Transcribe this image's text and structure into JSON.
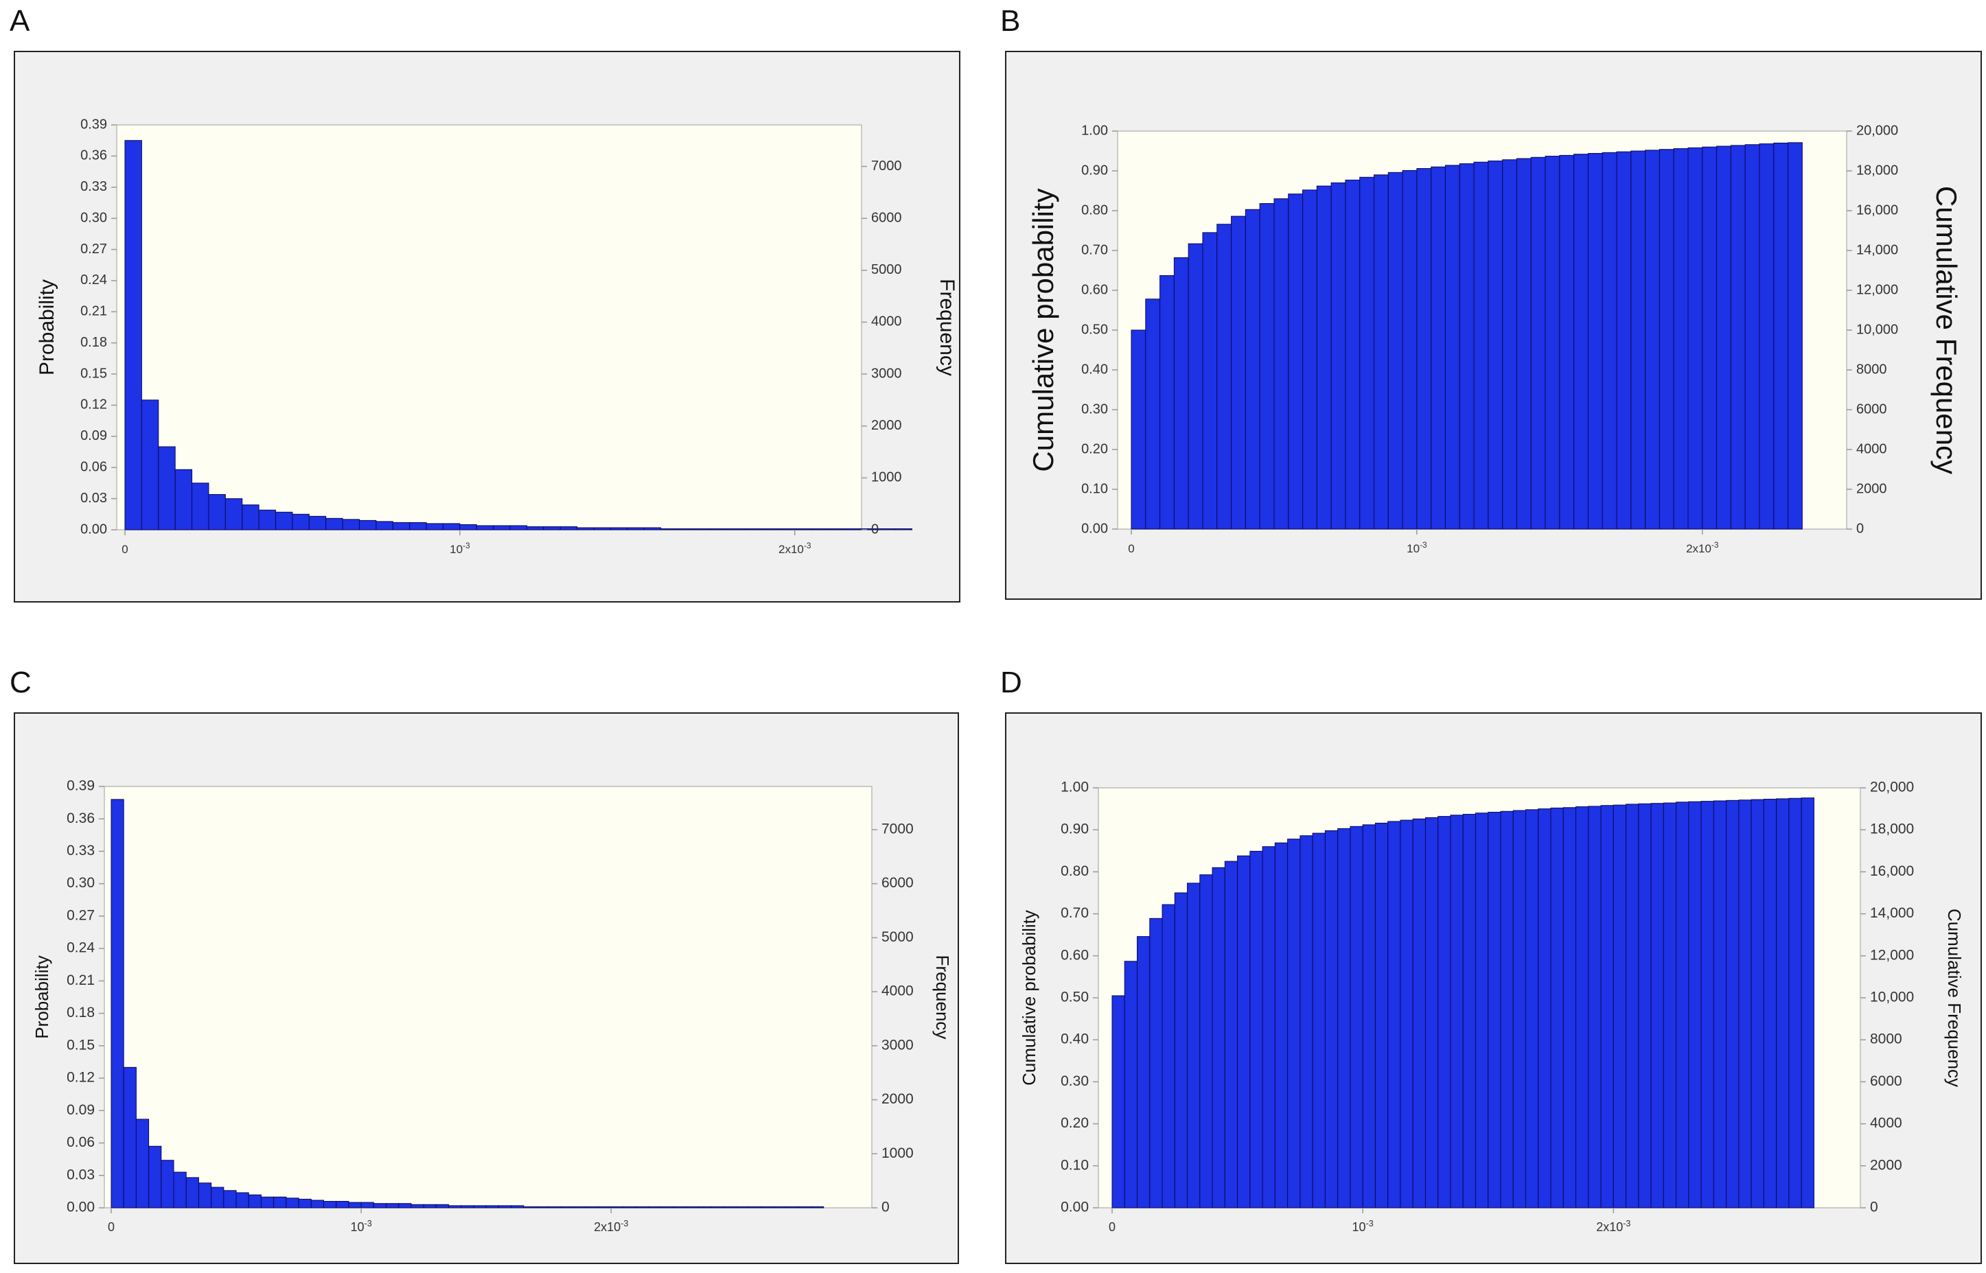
{
  "panels": [
    "A",
    "B",
    "C",
    "D"
  ],
  "colors": {
    "bar": "#1e32e6",
    "bar_edge": "#0a0a55",
    "plot_bg": "#fffef2",
    "panel_bg": "#f0f0f0",
    "axis": "#999999",
    "text": "#333333"
  },
  "chart_data": [
    {
      "panel": "A",
      "type": "bar",
      "ylabel": "Probability",
      "y2label": "Frequency",
      "ylim": [
        0,
        0.39
      ],
      "y2lim": [
        0,
        7800
      ],
      "yticks": [
        "0.00",
        "0.03",
        "0.06",
        "0.09",
        "0.12",
        "0.15",
        "0.18",
        "0.21",
        "0.24",
        "0.27",
        "0.30",
        "0.33",
        "0.36",
        "0.39"
      ],
      "y2ticks": [
        "0",
        "1000",
        "2000",
        "3000",
        "4000",
        "5000",
        "6000",
        "7000"
      ],
      "xlim": [
        0,
        0.00239
      ],
      "xticks": [
        {
          "value": 0,
          "label": "0"
        },
        {
          "value": 0.001,
          "label": "10-3"
        },
        {
          "value": 0.002,
          "label": "2x10-3"
        }
      ],
      "bin_width": 5e-05,
      "values": [
        0.375,
        0.125,
        0.08,
        0.058,
        0.045,
        0.034,
        0.03,
        0.024,
        0.019,
        0.017,
        0.015,
        0.013,
        0.011,
        0.01,
        0.009,
        0.008,
        0.007,
        0.007,
        0.006,
        0.006,
        0.005,
        0.004,
        0.004,
        0.004,
        0.003,
        0.003,
        0.003,
        0.002,
        0.002,
        0.002,
        0.002,
        0.002,
        0.001,
        0.001,
        0.001,
        0.001,
        0.001,
        0.001,
        0.001,
        0.001,
        0.001,
        0.001,
        0.001,
        0.001,
        0.001,
        0.001,
        0.001
      ],
      "grid": false
    },
    {
      "panel": "B",
      "type": "bar",
      "ylabel": "Cumulative probability",
      "y2label": "Cumulative Frequency",
      "ylim": [
        0,
        1.0
      ],
      "y2lim": [
        0,
        20000
      ],
      "yticks": [
        "0.00",
        "0.10",
        "0.20",
        "0.30",
        "0.40",
        "0.50",
        "0.60",
        "0.70",
        "0.80",
        "0.90",
        "1.00"
      ],
      "y2ticks": [
        "0",
        "2000",
        "4000",
        "6000",
        "8000",
        "10,000",
        "12,000",
        "14,000",
        "16,000",
        "18,000",
        "20,000"
      ],
      "xlim": [
        0,
        0.00239
      ],
      "xticks": [
        {
          "value": 0,
          "label": "0"
        },
        {
          "value": 0.001,
          "label": "10-3"
        },
        {
          "value": 0.002,
          "label": "2x10-3"
        }
      ],
      "bin_width": 5e-05,
      "values": [
        0.5,
        0.578,
        0.637,
        0.682,
        0.717,
        0.745,
        0.766,
        0.786,
        0.803,
        0.818,
        0.83,
        0.842,
        0.852,
        0.862,
        0.87,
        0.877,
        0.884,
        0.89,
        0.896,
        0.901,
        0.906,
        0.91,
        0.914,
        0.918,
        0.922,
        0.925,
        0.928,
        0.931,
        0.934,
        0.937,
        0.939,
        0.942,
        0.944,
        0.946,
        0.948,
        0.95,
        0.952,
        0.954,
        0.956,
        0.958,
        0.96,
        0.962,
        0.964,
        0.966,
        0.968,
        0.97,
        0.971
      ],
      "grid": false
    },
    {
      "panel": "C",
      "type": "bar",
      "ylabel": "Probability",
      "y2label": "Frequency",
      "ylim": [
        0,
        0.39
      ],
      "y2lim": [
        0,
        7800
      ],
      "yticks": [
        "0.00",
        "0.03",
        "0.06",
        "0.09",
        "0.12",
        "0.15",
        "0.18",
        "0.21",
        "0.24",
        "0.27",
        "0.30",
        "0.33",
        "0.36",
        "0.39"
      ],
      "y2ticks": [
        "0",
        "1000",
        "2000",
        "3000",
        "4000",
        "5000",
        "6000",
        "7000"
      ],
      "xlim": [
        0,
        0.00287
      ],
      "xticks": [
        {
          "value": 0,
          "label": "0"
        },
        {
          "value": 0.001,
          "label": "10-3"
        },
        {
          "value": 0.002,
          "label": "2x10-3"
        }
      ],
      "bin_width": 5e-05,
      "values": [
        0.378,
        0.13,
        0.082,
        0.057,
        0.044,
        0.033,
        0.028,
        0.023,
        0.019,
        0.016,
        0.014,
        0.012,
        0.01,
        0.01,
        0.009,
        0.008,
        0.007,
        0.006,
        0.006,
        0.005,
        0.005,
        0.004,
        0.004,
        0.004,
        0.003,
        0.003,
        0.003,
        0.002,
        0.002,
        0.002,
        0.002,
        0.002,
        0.002,
        0.001,
        0.001,
        0.001,
        0.001,
        0.001,
        0.001,
        0.001,
        0.001,
        0.001,
        0.001,
        0.001,
        0.001,
        0.001,
        0.001,
        0.001,
        0.001,
        0.001,
        0.001,
        0.001,
        0.001,
        0.001,
        0.001,
        0.001,
        0.001
      ],
      "grid": false
    },
    {
      "panel": "D",
      "type": "bar",
      "ylabel": "Cumulative probability",
      "y2label": "Cumulative Frequency",
      "ylim": [
        0,
        1.0
      ],
      "y2lim": [
        0,
        20000
      ],
      "yticks": [
        "0.00",
        "0.10",
        "0.20",
        "0.30",
        "0.40",
        "0.50",
        "0.60",
        "0.70",
        "0.80",
        "0.90",
        "1.00"
      ],
      "y2ticks": [
        "0",
        "2000",
        "4000",
        "6000",
        "8000",
        "10,000",
        "12,000",
        "14,000",
        "16,000",
        "18,000",
        "20,000"
      ],
      "xlim": [
        0,
        0.00287
      ],
      "xticks": [
        {
          "value": 0,
          "label": "0"
        },
        {
          "value": 0.001,
          "label": "10-3"
        },
        {
          "value": 0.002,
          "label": "2x10-3"
        }
      ],
      "bin_width": 5e-05,
      "values": [
        0.505,
        0.587,
        0.646,
        0.689,
        0.722,
        0.75,
        0.773,
        0.793,
        0.81,
        0.825,
        0.838,
        0.849,
        0.86,
        0.869,
        0.878,
        0.886,
        0.892,
        0.898,
        0.903,
        0.908,
        0.912,
        0.916,
        0.92,
        0.923,
        0.926,
        0.929,
        0.932,
        0.935,
        0.937,
        0.94,
        0.942,
        0.944,
        0.946,
        0.948,
        0.95,
        0.952,
        0.953,
        0.955,
        0.956,
        0.958,
        0.959,
        0.961,
        0.962,
        0.963,
        0.964,
        0.966,
        0.967,
        0.968,
        0.969,
        0.97,
        0.971,
        0.972,
        0.973,
        0.974,
        0.975,
        0.976
      ],
      "grid": false
    }
  ]
}
